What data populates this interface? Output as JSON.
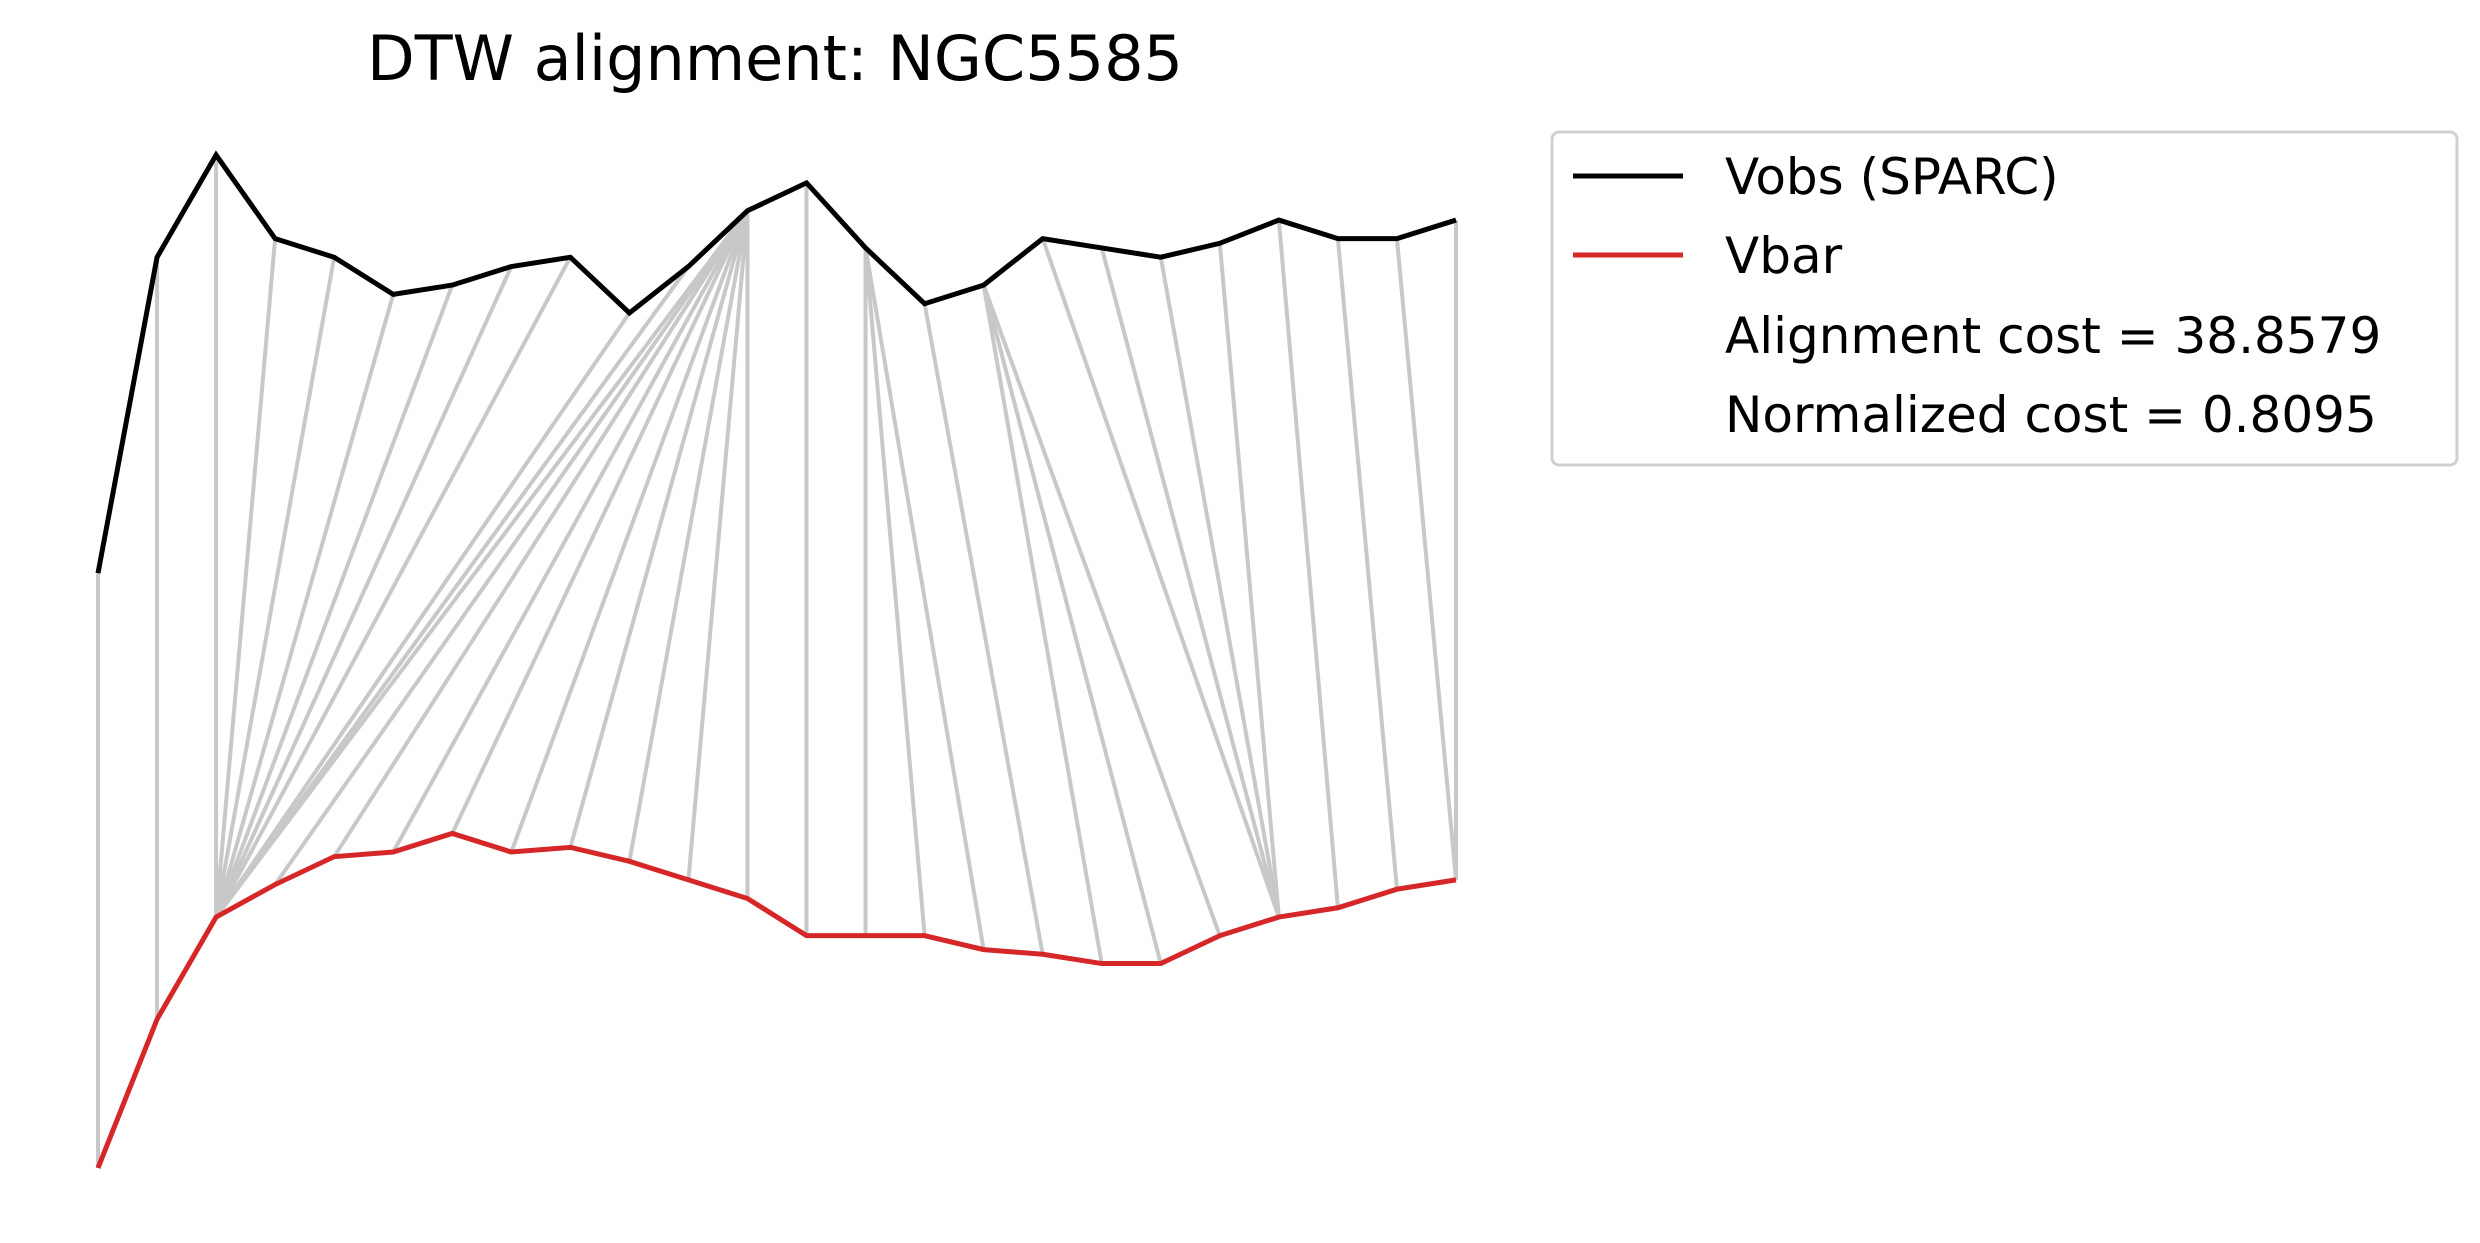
{
  "chart_data": {
    "type": "line",
    "title": "DTW alignment: NGC5585",
    "xlabel": "",
    "ylabel": "",
    "axes_visible": false,
    "grid": false,
    "legend_placement": "outside-right-top",
    "connector_color": "#c8c8c8",
    "series": [
      {
        "name": "Vobs (SPARC)",
        "color": "#000000",
        "values": [
          10.6,
          14.0,
          15.1,
          14.2,
          14.0,
          13.6,
          13.7,
          13.9,
          14.0,
          13.4,
          13.9,
          14.5,
          14.8,
          14.1,
          13.5,
          13.7,
          14.2,
          14.1,
          14.0,
          14.15,
          14.4,
          14.2,
          14.2,
          14.4
        ]
      },
      {
        "name": "Vbar",
        "color": "#d62728",
        "values": [
          4.2,
          5.8,
          6.9,
          7.25,
          7.55,
          7.6,
          7.8,
          7.6,
          7.65,
          7.5,
          7.3,
          7.1,
          6.7,
          6.7,
          6.7,
          6.55,
          6.5,
          6.4,
          6.4,
          6.7,
          6.9,
          7.0,
          7.2,
          7.3
        ]
      }
    ],
    "alignment_path": [
      [
        0,
        0
      ],
      [
        1,
        1
      ],
      [
        2,
        2
      ],
      [
        3,
        2
      ],
      [
        4,
        2
      ],
      [
        5,
        2
      ],
      [
        6,
        2
      ],
      [
        7,
        2
      ],
      [
        8,
        2
      ],
      [
        9,
        2
      ],
      [
        10,
        2
      ],
      [
        11,
        2
      ],
      [
        11,
        3
      ],
      [
        11,
        4
      ],
      [
        11,
        5
      ],
      [
        11,
        6
      ],
      [
        11,
        7
      ],
      [
        11,
        8
      ],
      [
        11,
        9
      ],
      [
        11,
        10
      ],
      [
        11,
        11
      ],
      [
        12,
        12
      ],
      [
        13,
        13
      ],
      [
        13,
        14
      ],
      [
        13,
        15
      ],
      [
        14,
        16
      ],
      [
        15,
        17
      ],
      [
        15,
        18
      ],
      [
        15,
        19
      ],
      [
        16,
        20
      ],
      [
        17,
        20
      ],
      [
        18,
        20
      ],
      [
        19,
        20
      ],
      [
        20,
        21
      ],
      [
        21,
        22
      ],
      [
        22,
        23
      ],
      [
        23,
        23
      ]
    ],
    "annotations": [
      "Alignment cost = 38.8579",
      "Normalized cost = 0.8095"
    ]
  }
}
